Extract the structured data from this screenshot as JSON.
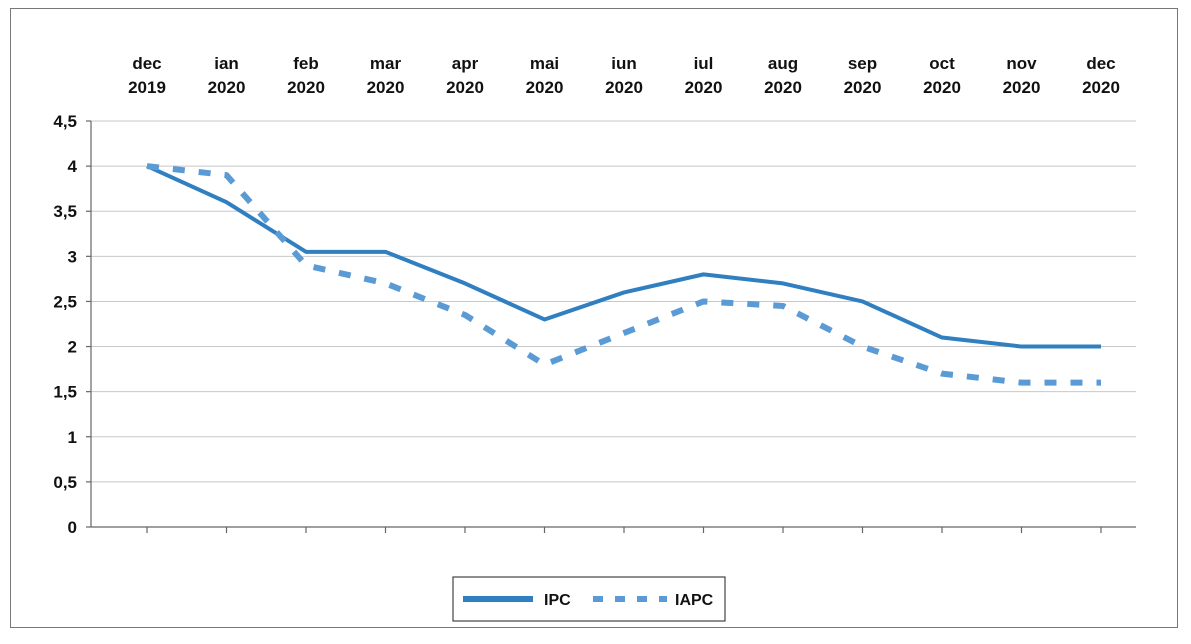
{
  "chart_data": {
    "type": "line",
    "categories": [
      {
        "month": "dec",
        "year": "2019"
      },
      {
        "month": "ian",
        "year": "2020"
      },
      {
        "month": "feb",
        "year": "2020"
      },
      {
        "month": "mar",
        "year": "2020"
      },
      {
        "month": "apr",
        "year": "2020"
      },
      {
        "month": "mai",
        "year": "2020"
      },
      {
        "month": "iun",
        "year": "2020"
      },
      {
        "month": "iul",
        "year": "2020"
      },
      {
        "month": "aug",
        "year": "2020"
      },
      {
        "month": "sep",
        "year": "2020"
      },
      {
        "month": "oct",
        "year": "2020"
      },
      {
        "month": "nov",
        "year": "2020"
      },
      {
        "month": "dec",
        "year": "2020"
      }
    ],
    "series": [
      {
        "name": "IPC",
        "style": "solid",
        "color": "#2f7fc1",
        "values": [
          4.0,
          3.6,
          3.05,
          3.05,
          2.7,
          2.3,
          2.6,
          2.8,
          2.7,
          2.5,
          2.1,
          2.0,
          2.0
        ]
      },
      {
        "name": "IAPC",
        "style": "dashed",
        "color": "#5b9bd5",
        "values": [
          4.0,
          3.9,
          2.9,
          2.7,
          2.35,
          1.8,
          2.15,
          2.5,
          2.45,
          2.0,
          1.7,
          1.6,
          1.6
        ]
      }
    ],
    "y_ticks": [
      "0",
      "0,5",
      "1",
      "1,5",
      "2",
      "2,5",
      "3",
      "3,5",
      "4",
      "4,5"
    ],
    "ylim": [
      0,
      4.5
    ],
    "x_axis_position": "top",
    "grid": true,
    "legend_position": "bottom-center"
  }
}
